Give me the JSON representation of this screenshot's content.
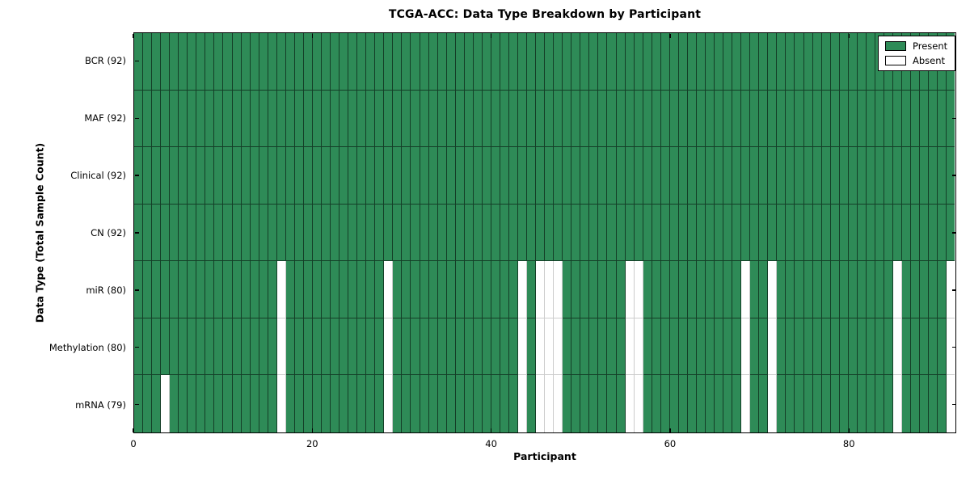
{
  "title": "TCGA-ACC: Data Type Breakdown by Participant",
  "legend": {
    "present_label": "Present",
    "absent_label": "Absent"
  },
  "colors": {
    "present": "#2e8b57",
    "absent": "#ffffff"
  },
  "chart_data": {
    "type": "heatmap",
    "title": "TCGA-ACC: Data Type Breakdown by Participant",
    "xlabel": "Participant",
    "ylabel": "Data Type (Total Sample Count)",
    "n_participants": 92,
    "x_range": [
      0,
      92
    ],
    "x_ticks": [
      0,
      20,
      40,
      60,
      80
    ],
    "grid": "cell-edges",
    "legend_position": "upper right",
    "legend_entries": [
      {
        "label": "Present",
        "color": "#2e8b57"
      },
      {
        "label": "Absent",
        "color": "#ffffff"
      }
    ],
    "rows": [
      {
        "name": "bcr",
        "label": "BCR (92)",
        "data_type": "BCR",
        "present_count": 92,
        "absent_participants": []
      },
      {
        "name": "maf",
        "label": "MAF (92)",
        "data_type": "MAF",
        "present_count": 92,
        "absent_participants": []
      },
      {
        "name": "clinical",
        "label": "Clinical (92)",
        "data_type": "Clinical",
        "present_count": 92,
        "absent_participants": []
      },
      {
        "name": "cn",
        "label": "CN (92)",
        "data_type": "CN",
        "present_count": 92,
        "absent_participants": []
      },
      {
        "name": "mir",
        "label": "miR (80)",
        "data_type": "miR",
        "present_count": 80,
        "absent_participants": [
          16,
          28,
          43,
          45,
          46,
          47,
          55,
          56,
          68,
          71,
          85,
          91
        ]
      },
      {
        "name": "methylation",
        "label": "Methylation (80)",
        "data_type": "Methylation",
        "present_count": 80,
        "absent_participants": [
          16,
          28,
          43,
          45,
          46,
          47,
          55,
          56,
          68,
          71,
          85,
          91
        ]
      },
      {
        "name": "mrna",
        "label": "mRNA (79)",
        "data_type": "mRNA",
        "present_count": 79,
        "absent_participants": [
          3,
          16,
          28,
          43,
          45,
          46,
          47,
          55,
          56,
          68,
          71,
          85,
          91
        ]
      }
    ]
  }
}
